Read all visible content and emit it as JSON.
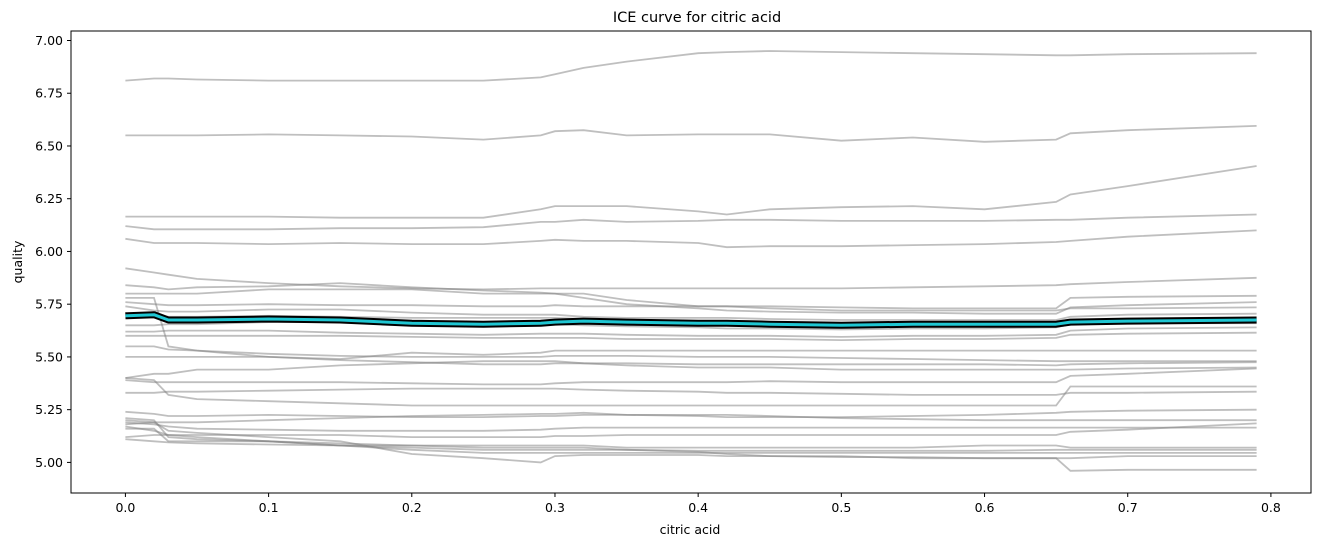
{
  "chart_data": {
    "type": "line",
    "title": "ICE curve for citric acid",
    "xlabel": "citric acid",
    "ylabel": "quality",
    "xlim": [
      -0.038,
      0.828
    ],
    "ylim": [
      4.855,
      7.045
    ],
    "xticks": [
      0.0,
      0.1,
      0.2,
      0.3,
      0.4,
      0.5,
      0.6,
      0.7,
      0.8
    ],
    "xtick_labels": [
      "0.0",
      "0.1",
      "0.2",
      "0.3",
      "0.4",
      "0.5",
      "0.6",
      "0.7",
      "0.8"
    ],
    "yticks": [
      5.0,
      5.25,
      5.5,
      5.75,
      6.0,
      6.25,
      6.5,
      6.75,
      7.0
    ],
    "ytick_labels": [
      "5.00",
      "5.25",
      "5.50",
      "5.75",
      "6.00",
      "6.25",
      "6.50",
      "6.75",
      "7.00"
    ],
    "grid": false,
    "legend": "none",
    "colors": {
      "ice": "#808080",
      "pdp": "#1fc6d2",
      "pdp_outline": "#000000"
    },
    "x": [
      0.0,
      0.02,
      0.03,
      0.05,
      0.1,
      0.15,
      0.2,
      0.25,
      0.29,
      0.3,
      0.32,
      0.35,
      0.4,
      0.42,
      0.45,
      0.5,
      0.55,
      0.6,
      0.65,
      0.66,
      0.7,
      0.79
    ],
    "series": [
      {
        "values": [
          6.81,
          6.82,
          6.82,
          6.815,
          6.81,
          6.81,
          6.81,
          6.81,
          6.825,
          6.84,
          6.87,
          6.9,
          6.94,
          6.945,
          6.95,
          6.945,
          6.94,
          6.935,
          6.93,
          6.93,
          6.935,
          6.94
        ]
      },
      {
        "values": [
          6.55,
          6.55,
          6.55,
          6.55,
          6.555,
          6.55,
          6.545,
          6.53,
          6.55,
          6.57,
          6.575,
          6.55,
          6.555,
          6.555,
          6.555,
          6.525,
          6.54,
          6.52,
          6.53,
          6.56,
          6.575,
          6.595
        ]
      },
      {
        "values": [
          6.165,
          6.165,
          6.165,
          6.165,
          6.165,
          6.16,
          6.16,
          6.16,
          6.2,
          6.215,
          6.215,
          6.215,
          6.19,
          6.175,
          6.2,
          6.21,
          6.215,
          6.2,
          6.235,
          6.27,
          6.31,
          6.405
        ]
      },
      {
        "values": [
          6.12,
          6.105,
          6.105,
          6.105,
          6.105,
          6.11,
          6.11,
          6.115,
          6.14,
          6.14,
          6.15,
          6.14,
          6.145,
          6.15,
          6.15,
          6.145,
          6.145,
          6.145,
          6.15,
          6.15,
          6.16,
          6.175
        ]
      },
      {
        "values": [
          6.06,
          6.04,
          6.04,
          6.04,
          6.035,
          6.04,
          6.035,
          6.035,
          6.05,
          6.055,
          6.05,
          6.05,
          6.04,
          6.02,
          6.025,
          6.025,
          6.03,
          6.035,
          6.045,
          6.05,
          6.07,
          6.1
        ]
      },
      {
        "values": [
          5.92,
          5.9,
          5.89,
          5.87,
          5.85,
          5.835,
          5.825,
          5.82,
          5.825,
          5.825,
          5.825,
          5.825,
          5.825,
          5.825,
          5.825,
          5.825,
          5.83,
          5.835,
          5.84,
          5.845,
          5.855,
          5.875
        ]
      },
      {
        "values": [
          5.84,
          5.83,
          5.82,
          5.83,
          5.835,
          5.85,
          5.83,
          5.815,
          5.805,
          5.8,
          5.8,
          5.77,
          5.74,
          5.74,
          5.73,
          5.72,
          5.72,
          5.72,
          5.72,
          5.73,
          5.73,
          5.735
        ]
      },
      {
        "values": [
          5.8,
          5.8,
          5.8,
          5.8,
          5.82,
          5.82,
          5.82,
          5.8,
          5.8,
          5.8,
          5.78,
          5.75,
          5.73,
          5.72,
          5.715,
          5.71,
          5.71,
          5.705,
          5.705,
          5.735,
          5.745,
          5.76
        ]
      },
      {
        "values": [
          5.76,
          5.75,
          5.745,
          5.745,
          5.75,
          5.745,
          5.745,
          5.74,
          5.74,
          5.745,
          5.74,
          5.74,
          5.74,
          5.74,
          5.74,
          5.735,
          5.73,
          5.73,
          5.73,
          5.78,
          5.785,
          5.79
        ]
      },
      {
        "values": [
          5.74,
          5.72,
          5.715,
          5.715,
          5.725,
          5.725,
          5.71,
          5.7,
          5.7,
          5.7,
          5.69,
          5.685,
          5.685,
          5.685,
          5.68,
          5.675,
          5.675,
          5.675,
          5.675,
          5.69,
          5.7,
          5.705
        ]
      },
      {
        "values": [
          5.7,
          5.7,
          5.69,
          5.69,
          5.695,
          5.69,
          5.685,
          5.685,
          5.685,
          5.685,
          5.68,
          5.675,
          5.67,
          5.665,
          5.665,
          5.66,
          5.655,
          5.655,
          5.655,
          5.66,
          5.66,
          5.66
        ]
      },
      {
        "values": [
          5.65,
          5.65,
          5.655,
          5.655,
          5.665,
          5.665,
          5.66,
          5.655,
          5.655,
          5.655,
          5.65,
          5.645,
          5.64,
          5.635,
          5.635,
          5.63,
          5.635,
          5.635,
          5.64,
          5.655,
          5.665,
          5.67
        ]
      },
      {
        "values": [
          5.62,
          5.62,
          5.625,
          5.625,
          5.625,
          5.615,
          5.61,
          5.605,
          5.61,
          5.61,
          5.61,
          5.605,
          5.6,
          5.6,
          5.6,
          5.595,
          5.6,
          5.6,
          5.605,
          5.625,
          5.635,
          5.64
        ]
      },
      {
        "values": [
          5.6,
          5.6,
          5.6,
          5.6,
          5.6,
          5.6,
          5.595,
          5.59,
          5.59,
          5.59,
          5.59,
          5.585,
          5.585,
          5.585,
          5.585,
          5.58,
          5.585,
          5.585,
          5.59,
          5.605,
          5.61,
          5.615
        ]
      },
      {
        "values": [
          5.78,
          5.78,
          5.55,
          5.53,
          5.5,
          5.49,
          5.52,
          5.51,
          5.52,
          5.53,
          5.53,
          5.53,
          5.53,
          5.53,
          5.53,
          5.53,
          5.53,
          5.53,
          5.53,
          5.53,
          5.53,
          5.53
        ]
      },
      {
        "values": [
          5.55,
          5.55,
          5.535,
          5.53,
          5.515,
          5.505,
          5.5,
          5.5,
          5.5,
          5.505,
          5.505,
          5.505,
          5.5,
          5.5,
          5.5,
          5.495,
          5.49,
          5.485,
          5.48,
          5.48,
          5.48,
          5.48
        ]
      },
      {
        "values": [
          5.5,
          5.5,
          5.5,
          5.5,
          5.5,
          5.485,
          5.475,
          5.465,
          5.465,
          5.47,
          5.47,
          5.47,
          5.465,
          5.465,
          5.465,
          5.465,
          5.465,
          5.465,
          5.46,
          5.465,
          5.47,
          5.475
        ]
      },
      {
        "values": [
          5.4,
          5.42,
          5.42,
          5.44,
          5.44,
          5.46,
          5.47,
          5.48,
          5.48,
          5.48,
          5.47,
          5.46,
          5.45,
          5.45,
          5.45,
          5.44,
          5.44,
          5.44,
          5.44,
          5.44,
          5.445,
          5.45
        ]
      },
      {
        "values": [
          5.39,
          5.38,
          5.38,
          5.38,
          5.38,
          5.38,
          5.375,
          5.37,
          5.37,
          5.375,
          5.38,
          5.38,
          5.38,
          5.38,
          5.385,
          5.38,
          5.38,
          5.38,
          5.38,
          5.41,
          5.42,
          5.445
        ]
      },
      {
        "values": [
          5.4,
          5.39,
          5.32,
          5.3,
          5.29,
          5.28,
          5.27,
          5.27,
          5.27,
          5.27,
          5.27,
          5.27,
          5.27,
          5.27,
          5.27,
          5.27,
          5.27,
          5.27,
          5.27,
          5.36,
          5.36,
          5.36
        ]
      },
      {
        "values": [
          5.33,
          5.33,
          5.335,
          5.335,
          5.34,
          5.345,
          5.35,
          5.35,
          5.35,
          5.35,
          5.345,
          5.34,
          5.335,
          5.33,
          5.33,
          5.325,
          5.32,
          5.32,
          5.32,
          5.33,
          5.33,
          5.335
        ]
      },
      {
        "values": [
          5.24,
          5.23,
          5.22,
          5.22,
          5.225,
          5.22,
          5.215,
          5.215,
          5.22,
          5.22,
          5.225,
          5.225,
          5.225,
          5.225,
          5.22,
          5.21,
          5.205,
          5.2,
          5.2,
          5.2,
          5.2,
          5.2
        ]
      },
      {
        "values": [
          5.18,
          5.19,
          5.19,
          5.19,
          5.2,
          5.21,
          5.22,
          5.225,
          5.23,
          5.23,
          5.235,
          5.225,
          5.22,
          5.215,
          5.215,
          5.215,
          5.22,
          5.225,
          5.235,
          5.24,
          5.245,
          5.25
        ]
      },
      {
        "values": [
          5.19,
          5.18,
          5.17,
          5.16,
          5.155,
          5.15,
          5.15,
          5.15,
          5.155,
          5.16,
          5.165,
          5.165,
          5.165,
          5.165,
          5.165,
          5.165,
          5.165,
          5.165,
          5.165,
          5.165,
          5.165,
          5.165
        ]
      },
      {
        "values": [
          5.12,
          5.13,
          5.13,
          5.13,
          5.13,
          5.13,
          5.12,
          5.12,
          5.12,
          5.125,
          5.125,
          5.13,
          5.13,
          5.13,
          5.13,
          5.13,
          5.13,
          5.13,
          5.13,
          5.145,
          5.155,
          5.185
        ]
      },
      {
        "values": [
          5.16,
          5.16,
          5.1,
          5.1,
          5.1,
          5.08,
          5.08,
          5.08,
          5.08,
          5.08,
          5.08,
          5.07,
          5.07,
          5.07,
          5.07,
          5.07,
          5.07,
          5.08,
          5.08,
          5.07,
          5.07,
          5.07
        ]
      },
      {
        "values": [
          5.11,
          5.1,
          5.095,
          5.09,
          5.085,
          5.08,
          5.07,
          5.06,
          5.06,
          5.06,
          5.06,
          5.06,
          5.055,
          5.055,
          5.055,
          5.055,
          5.055,
          5.055,
          5.06,
          5.06,
          5.06,
          5.06
        ]
      },
      {
        "values": [
          5.17,
          5.15,
          5.13,
          5.12,
          5.1,
          5.08,
          5.06,
          5.045,
          5.045,
          5.045,
          5.045,
          5.045,
          5.045,
          5.045,
          5.045,
          5.045,
          5.045,
          5.045,
          5.045,
          5.045,
          5.045,
          5.045
        ]
      },
      {
        "values": [
          5.2,
          5.19,
          5.15,
          5.14,
          5.12,
          5.1,
          5.04,
          5.02,
          5.0,
          5.03,
          5.035,
          5.035,
          5.035,
          5.03,
          5.03,
          5.025,
          5.025,
          5.02,
          5.02,
          5.02,
          5.03,
          5.03
        ]
      },
      {
        "values": [
          5.21,
          5.2,
          5.12,
          5.11,
          5.1,
          5.09,
          5.08,
          5.07,
          5.07,
          5.07,
          5.07,
          5.06,
          5.05,
          5.04,
          5.03,
          5.03,
          5.02,
          5.02,
          5.02,
          4.96,
          4.965,
          4.965
        ]
      }
    ],
    "pdp": [
      5.695,
      5.7,
      5.675,
      5.675,
      5.68,
      5.675,
      5.66,
      5.655,
      5.66,
      5.665,
      5.67,
      5.665,
      5.66,
      5.66,
      5.655,
      5.65,
      5.655,
      5.655,
      5.655,
      5.665,
      5.67,
      5.675
    ]
  }
}
